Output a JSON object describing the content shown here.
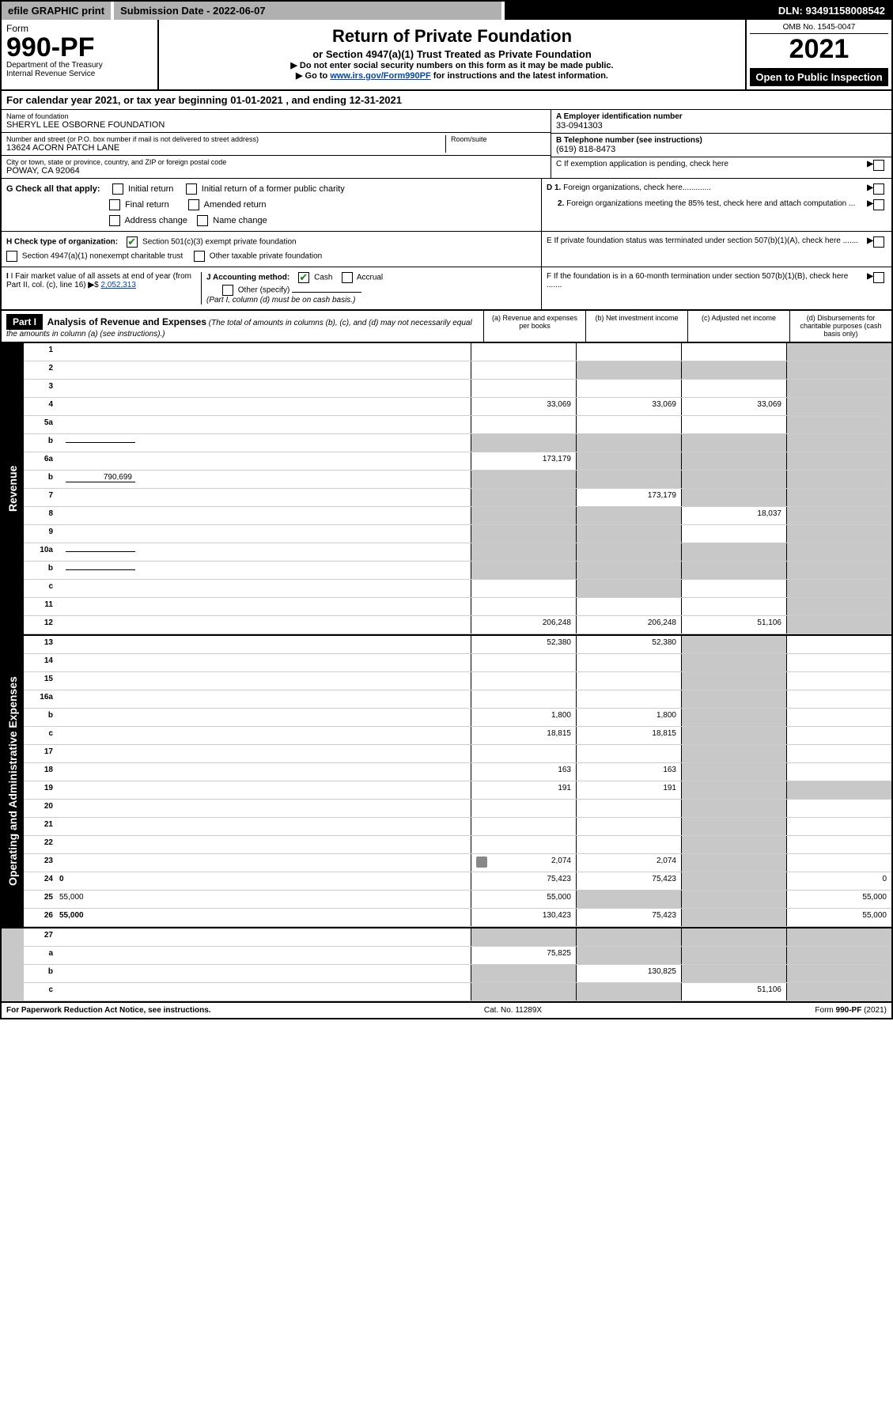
{
  "topbar": {
    "efile": "efile GRAPHIC print",
    "submission": "Submission Date - 2022-06-07",
    "dln": "DLN: 93491158008542"
  },
  "header": {
    "form_word": "Form",
    "form_no": "990-PF",
    "dept": "Department of the Treasury",
    "irs": "Internal Revenue Service",
    "title": "Return of Private Foundation",
    "subtitle": "or Section 4947(a)(1) Trust Treated as Private Foundation",
    "note1": "▶ Do not enter social security numbers on this form as it may be made public.",
    "note2_pre": "▶ Go to ",
    "note2_link": "www.irs.gov/Form990PF",
    "note2_post": " for instructions and the latest information.",
    "omb": "OMB No. 1545-0047",
    "year": "2021",
    "open": "Open to Public Inspection"
  },
  "cal_year": "For calendar year 2021, or tax year beginning 01-01-2021            , and ending 12-31-2021",
  "foundation": {
    "name_label": "Name of foundation",
    "name": "SHERYL LEE OSBORNE FOUNDATION",
    "addr_label": "Number and street (or P.O. box number if mail is not delivered to street address)",
    "addr": "13624 ACORN PATCH LANE",
    "room_label": "Room/suite",
    "city_label": "City or town, state or province, country, and ZIP or foreign postal code",
    "city": "POWAY, CA  92064",
    "ein_label": "A Employer identification number",
    "ein": "33-0941303",
    "phone_label": "B Telephone number (see instructions)",
    "phone": "(619) 818-8473",
    "c_label": "C If exemption application is pending, check here"
  },
  "checks": {
    "g_label": "G Check all that apply:",
    "initial": "Initial return",
    "initial_former": "Initial return of a former public charity",
    "final": "Final return",
    "amended": "Amended return",
    "address": "Address change",
    "name_change": "Name change",
    "h_label": "H Check type of organization:",
    "h_501c3": "Section 501(c)(3) exempt private foundation",
    "h_4947": "Section 4947(a)(1) nonexempt charitable trust",
    "h_other": "Other taxable private foundation",
    "i_label": "I Fair market value of all assets at end of year (from Part II, col. (c), line 16)",
    "i_value": "2,052,313",
    "j_label": "J Accounting method:",
    "j_cash": "Cash",
    "j_accrual": "Accrual",
    "j_other": "Other (specify)",
    "j_note": "(Part I, column (d) must be on cash basis.)",
    "d1": "D 1. Foreign organizations, check here.............",
    "d2": "2. Foreign organizations meeting the 85% test, check here and attach computation ...",
    "e": "E  If private foundation status was terminated under section 507(b)(1)(A), check here .......",
    "f": "F  If the foundation is in a 60-month termination under section 507(b)(1)(B), check here ......."
  },
  "part1": {
    "label": "Part I",
    "title": "Analysis of Revenue and Expenses",
    "title_note": " (The total of amounts in columns (b), (c), and (d) may not necessarily equal the amounts in column (a) (see instructions).)",
    "col_a": "(a) Revenue and expenses per books",
    "col_b": "(b) Net investment income",
    "col_c": "(c) Adjusted net income",
    "col_d": "(d) Disbursements for charitable purposes (cash basis only)"
  },
  "side_labels": {
    "revenue": "Revenue",
    "expenses": "Operating and Administrative Expenses"
  },
  "rows": [
    {
      "n": "1",
      "d": "",
      "a": "",
      "b": "",
      "c": "",
      "ga": false,
      "gb": false,
      "gc": false,
      "gd": true
    },
    {
      "n": "2",
      "d": "",
      "a": "",
      "b": "",
      "c": "",
      "ga": false,
      "gb": true,
      "gc": true,
      "gd": true,
      "bold_not": true
    },
    {
      "n": "3",
      "d": "",
      "a": "",
      "b": "",
      "c": "",
      "ga": false,
      "gb": false,
      "gc": false,
      "gd": true
    },
    {
      "n": "4",
      "d": "",
      "a": "33,069",
      "b": "33,069",
      "c": "33,069",
      "ga": false,
      "gb": false,
      "gc": false,
      "gd": true
    },
    {
      "n": "5a",
      "d": "",
      "a": "",
      "b": "",
      "c": "",
      "ga": false,
      "gb": false,
      "gc": false,
      "gd": true
    },
    {
      "n": "b",
      "d": "",
      "a": "",
      "b": "",
      "c": "",
      "ga": true,
      "gb": true,
      "gc": true,
      "gd": true,
      "inline": true
    },
    {
      "n": "6a",
      "d": "",
      "a": "173,179",
      "b": "",
      "c": "",
      "ga": false,
      "gb": true,
      "gc": true,
      "gd": true
    },
    {
      "n": "b",
      "d": "",
      "a": "",
      "b": "",
      "c": "",
      "ga": true,
      "gb": true,
      "gc": true,
      "gd": true,
      "inline": true,
      "inline_val": "790,699"
    },
    {
      "n": "7",
      "d": "",
      "a": "",
      "b": "173,179",
      "c": "",
      "ga": true,
      "gb": false,
      "gc": true,
      "gd": true
    },
    {
      "n": "8",
      "d": "",
      "a": "",
      "b": "",
      "c": "18,037",
      "ga": true,
      "gb": true,
      "gc": false,
      "gd": true
    },
    {
      "n": "9",
      "d": "",
      "a": "",
      "b": "",
      "c": "",
      "ga": true,
      "gb": true,
      "gc": false,
      "gd": true
    },
    {
      "n": "10a",
      "d": "",
      "a": "",
      "b": "",
      "c": "",
      "ga": true,
      "gb": true,
      "gc": true,
      "gd": true,
      "inline": true
    },
    {
      "n": "b",
      "d": "",
      "a": "",
      "b": "",
      "c": "",
      "ga": true,
      "gb": true,
      "gc": true,
      "gd": true,
      "inline": true
    },
    {
      "n": "c",
      "d": "",
      "a": "",
      "b": "",
      "c": "",
      "ga": false,
      "gb": true,
      "gc": false,
      "gd": true
    },
    {
      "n": "11",
      "d": "",
      "a": "",
      "b": "",
      "c": "",
      "ga": false,
      "gb": false,
      "gc": false,
      "gd": true
    },
    {
      "n": "12",
      "d": "",
      "a": "206,248",
      "b": "206,248",
      "c": "51,106",
      "ga": false,
      "gb": false,
      "gc": false,
      "gd": true,
      "bold": true
    }
  ],
  "exp_rows": [
    {
      "n": "13",
      "d": "",
      "a": "52,380",
      "b": "52,380",
      "c": ""
    },
    {
      "n": "14",
      "d": "",
      "a": "",
      "b": "",
      "c": ""
    },
    {
      "n": "15",
      "d": "",
      "a": "",
      "b": "",
      "c": ""
    },
    {
      "n": "16a",
      "d": "",
      "a": "",
      "b": "",
      "c": ""
    },
    {
      "n": "b",
      "d": "",
      "a": "1,800",
      "b": "1,800",
      "c": ""
    },
    {
      "n": "c",
      "d": "",
      "a": "18,815",
      "b": "18,815",
      "c": ""
    },
    {
      "n": "17",
      "d": "",
      "a": "",
      "b": "",
      "c": ""
    },
    {
      "n": "18",
      "d": "",
      "a": "163",
      "b": "163",
      "c": ""
    },
    {
      "n": "19",
      "d": "",
      "a": "191",
      "b": "191",
      "c": "",
      "gd": true
    },
    {
      "n": "20",
      "d": "",
      "a": "",
      "b": "",
      "c": ""
    },
    {
      "n": "21",
      "d": "",
      "a": "",
      "b": "",
      "c": ""
    },
    {
      "n": "22",
      "d": "",
      "a": "",
      "b": "",
      "c": ""
    },
    {
      "n": "23",
      "d": "",
      "a": "2,074",
      "b": "2,074",
      "c": "",
      "attach": true
    },
    {
      "n": "24",
      "d": "0",
      "a": "75,423",
      "b": "75,423",
      "c": "",
      "bold": true
    },
    {
      "n": "25",
      "d": "55,000",
      "a": "55,000",
      "b": "",
      "c": "",
      "gb": true,
      "gc": true
    },
    {
      "n": "26",
      "d": "55,000",
      "a": "130,423",
      "b": "75,423",
      "c": "",
      "bold": true
    }
  ],
  "final_rows": [
    {
      "n": "27",
      "d": "",
      "a": "",
      "b": "",
      "c": "",
      "ga": true,
      "gb": true,
      "gc": true,
      "gd": true
    },
    {
      "n": "a",
      "d": "",
      "a": "75,825",
      "b": "",
      "c": "",
      "bold": true,
      "gb": true,
      "gc": true,
      "gd": true
    },
    {
      "n": "b",
      "d": "",
      "a": "",
      "b": "130,825",
      "c": "",
      "bold": true,
      "ga": true,
      "gc": true,
      "gd": true
    },
    {
      "n": "c",
      "d": "",
      "a": "",
      "b": "",
      "c": "51,106",
      "bold": true,
      "ga": true,
      "gb": true,
      "gd": true
    }
  ],
  "footer": {
    "left": "For Paperwork Reduction Act Notice, see instructions.",
    "center": "Cat. No. 11289X",
    "right": "Form 990-PF (2021)"
  }
}
